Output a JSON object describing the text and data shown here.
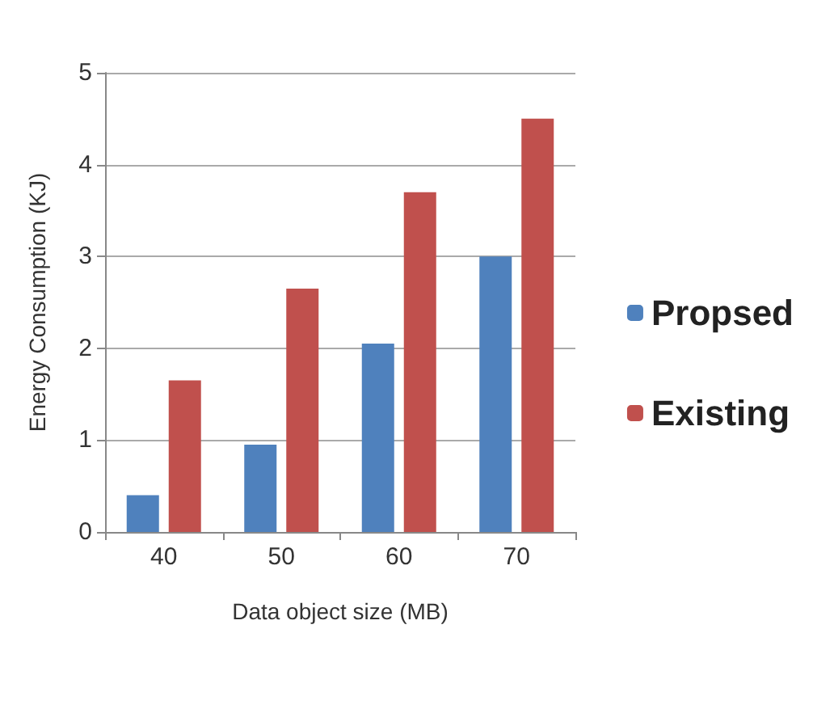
{
  "chart_data": {
    "type": "bar",
    "xlabel": "Data object size (MB)",
    "ylabel": "Energy Consumption (KJ)",
    "categories": [
      "40",
      "50",
      "60",
      "70"
    ],
    "series": [
      {
        "name": "Propsed",
        "color": "#4f81bd",
        "values": [
          0.4,
          0.95,
          2.05,
          3.0
        ]
      },
      {
        "name": "Existing",
        "color": "#c0504d",
        "values": [
          1.65,
          2.65,
          3.7,
          4.5
        ]
      }
    ],
    "ylim": [
      0,
      5
    ],
    "yticks": [
      0,
      1,
      2,
      3,
      4,
      5
    ],
    "grid": "y",
    "legend": "right"
  }
}
